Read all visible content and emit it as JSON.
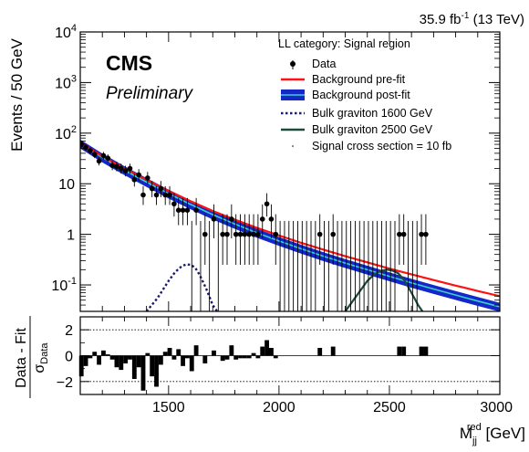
{
  "header": {
    "lumi": "35.9 fb",
    "lumi_sup": "-1",
    "energy": "(13 TeV)",
    "cms": "CMS",
    "preliminary": "Preliminary",
    "category": "LL category: Signal region"
  },
  "legend": {
    "data": "Data",
    "bkg_prefit": "Background pre-fit",
    "bkg_postfit": "Background post-fit",
    "grav1600": "Bulk graviton 1600 GeV",
    "grav2500": "Bulk graviton 2500 GeV",
    "xsec": "Signal cross section = 10 fb"
  },
  "colors": {
    "prefit": "#ff1111",
    "postfit": "#1428c8",
    "postfit_center": "#3bd0d0",
    "grav1600": "#1a1a6e",
    "grav2500": "#1d4a3a",
    "pull_bars": "#000000"
  },
  "chart_data": [
    {
      "type": "scatter",
      "ylabel": "Events / 50 GeV",
      "xlim": [
        1100,
        3000
      ],
      "ylim": [
        0.03,
        10000
      ],
      "yscale": "log",
      "grid": false,
      "legend_position": "top-right",
      "ytick_base": "10",
      "yticks": [
        {
          "value": 0.1,
          "exp": "-1",
          "label": ""
        },
        {
          "value": 1,
          "exp": "",
          "label": "1"
        },
        {
          "value": 10,
          "exp": "",
          "label": "10"
        },
        {
          "value": 100,
          "exp": "2",
          "label": ""
        },
        {
          "value": 1000,
          "exp": "3",
          "label": ""
        },
        {
          "value": 10000,
          "exp": "4",
          "label": ""
        }
      ],
      "data_x": [
        1105,
        1125,
        1145,
        1165,
        1185,
        1205,
        1225,
        1245,
        1265,
        1285,
        1305,
        1325,
        1345,
        1365,
        1385,
        1405,
        1425,
        1445,
        1465,
        1485,
        1505,
        1525,
        1545,
        1565,
        1585,
        1605,
        1625,
        1645,
        1665,
        1685,
        1705,
        1725,
        1745,
        1765,
        1785,
        1805,
        1825,
        1845,
        1865,
        1885,
        1905,
        1925,
        1945,
        1965,
        1985,
        2005,
        2025,
        2045,
        2065,
        2085,
        2105,
        2125,
        2145,
        2165,
        2185,
        2205,
        2225,
        2245,
        2265,
        2285,
        2305,
        2325,
        2345,
        2365,
        2385,
        2405,
        2425,
        2445,
        2465,
        2485,
        2505,
        2525,
        2545,
        2565,
        2585,
        2605,
        2625,
        2645,
        2665
      ],
      "data_y": [
        60,
        52,
        45,
        38,
        28,
        36,
        32,
        23,
        22,
        20,
        18,
        20,
        12,
        15,
        6,
        13,
        8,
        6,
        8,
        6,
        6,
        4,
        3,
        3,
        3,
        0,
        3,
        0,
        1,
        0,
        2,
        0,
        1,
        1,
        2,
        1,
        1,
        1,
        1,
        1,
        1,
        2,
        4,
        2,
        1,
        0,
        0,
        0,
        0,
        0,
        0,
        0,
        0,
        0,
        1,
        0,
        0,
        1,
        0,
        0,
        0,
        0,
        0,
        0,
        0,
        0,
        0,
        0,
        0,
        0,
        0,
        0,
        1,
        1,
        0,
        0,
        0,
        1,
        1
      ],
      "bkg_prefit": {
        "x": [
          1100,
          1200,
          1300,
          1400,
          1500,
          1600,
          1700,
          1800,
          1900,
          2000,
          2100,
          2200,
          2300,
          2400,
          2500,
          2600,
          2700,
          2800,
          2900,
          3000
        ],
        "y": [
          65,
          35,
          20,
          12,
          7.2,
          4.5,
          2.9,
          1.95,
          1.34,
          0.95,
          0.68,
          0.5,
          0.37,
          0.28,
          0.21,
          0.162,
          0.125,
          0.097,
          0.076,
          0.06
        ]
      },
      "bkg_postfit": {
        "x": [
          1100,
          1200,
          1300,
          1400,
          1500,
          1600,
          1700,
          1800,
          1900,
          2000,
          2100,
          2200,
          2300,
          2400,
          2500,
          2600,
          2700,
          2800,
          2900,
          3000
        ],
        "y": [
          62,
          33,
          18.5,
          10.8,
          6.4,
          3.9,
          2.45,
          1.6,
          1.07,
          0.74,
          0.52,
          0.37,
          0.27,
          0.2,
          0.148,
          0.11,
          0.083,
          0.063,
          0.048,
          0.037
        ],
        "band_frac": 0.2
      },
      "grav1600": {
        "x": [
          1400,
          1450,
          1500,
          1530,
          1560,
          1580,
          1600,
          1620,
          1640,
          1670,
          1700,
          1720
        ],
        "y": [
          0.03,
          0.055,
          0.12,
          0.18,
          0.235,
          0.255,
          0.25,
          0.22,
          0.16,
          0.085,
          0.04,
          0.03
        ]
      },
      "grav2500": {
        "x": [
          2300,
          2350,
          2400,
          2430,
          2460,
          2490,
          2510,
          2540,
          2570,
          2600,
          2630,
          2650
        ],
        "y": [
          0.03,
          0.06,
          0.12,
          0.16,
          0.19,
          0.2,
          0.195,
          0.17,
          0.12,
          0.07,
          0.04,
          0.03
        ]
      }
    },
    {
      "type": "bar",
      "ylabel_num": "Data - Fit",
      "ylabel_den": "σ",
      "ylabel_den_sub": "Data",
      "xlabel": "M",
      "xlabel_sub": "jj",
      "xlabel_sup": "red",
      "xlabel_unit": "[GeV]",
      "xlim": [
        1100,
        3000
      ],
      "ylim": [
        -3,
        3
      ],
      "yticks": [
        -2,
        0,
        2
      ],
      "xticks": [
        1500,
        2000,
        2500,
        3000
      ],
      "reference_lines": [
        -2,
        0,
        2
      ],
      "x": [
        1105,
        1125,
        1145,
        1165,
        1185,
        1205,
        1225,
        1245,
        1265,
        1285,
        1305,
        1325,
        1345,
        1365,
        1385,
        1405,
        1425,
        1445,
        1465,
        1485,
        1505,
        1525,
        1545,
        1565,
        1585,
        1605,
        1625,
        1645,
        1665,
        1685,
        1705,
        1725,
        1745,
        1765,
        1785,
        1805,
        1825,
        1845,
        1865,
        1885,
        1905,
        1925,
        1945,
        1965,
        1985,
        2005,
        2025,
        2045,
        2065,
        2085,
        2105,
        2125,
        2145,
        2165,
        2185,
        2205,
        2225,
        2245,
        2265,
        2285,
        2305,
        2325,
        2345,
        2365,
        2385,
        2405,
        2425,
        2445,
        2465,
        2485,
        2505,
        2525,
        2545,
        2565,
        2585,
        2605,
        2625,
        2645,
        2665
      ],
      "values": [
        -1.6,
        -0.8,
        -0.2,
        0.3,
        -0.7,
        0.4,
        0.1,
        -0.3,
        -0.9,
        -1.1,
        -0.6,
        -0.3,
        -1.8,
        -0.9,
        -2.7,
        0.2,
        -1.6,
        -2.4,
        -0.7,
        0.3,
        0.6,
        -0.3,
        0.5,
        -0.8,
        -0.2,
        -1.2,
        0.8,
        0,
        -0.6,
        0,
        0.4,
        0,
        -0.4,
        -0.3,
        0.8,
        -0.3,
        -0.2,
        -0.2,
        -0.2,
        0.2,
        -0.2,
        0.7,
        1.2,
        0.6,
        -0.2,
        0,
        0,
        0,
        0,
        0,
        0,
        0,
        0,
        0,
        0.6,
        0,
        0,
        0.7,
        0,
        0,
        0,
        0,
        0,
        0,
        0,
        0,
        0,
        0,
        0,
        0,
        0,
        0,
        0.7,
        0.7,
        0,
        0,
        0,
        0.7,
        0.7
      ]
    }
  ]
}
